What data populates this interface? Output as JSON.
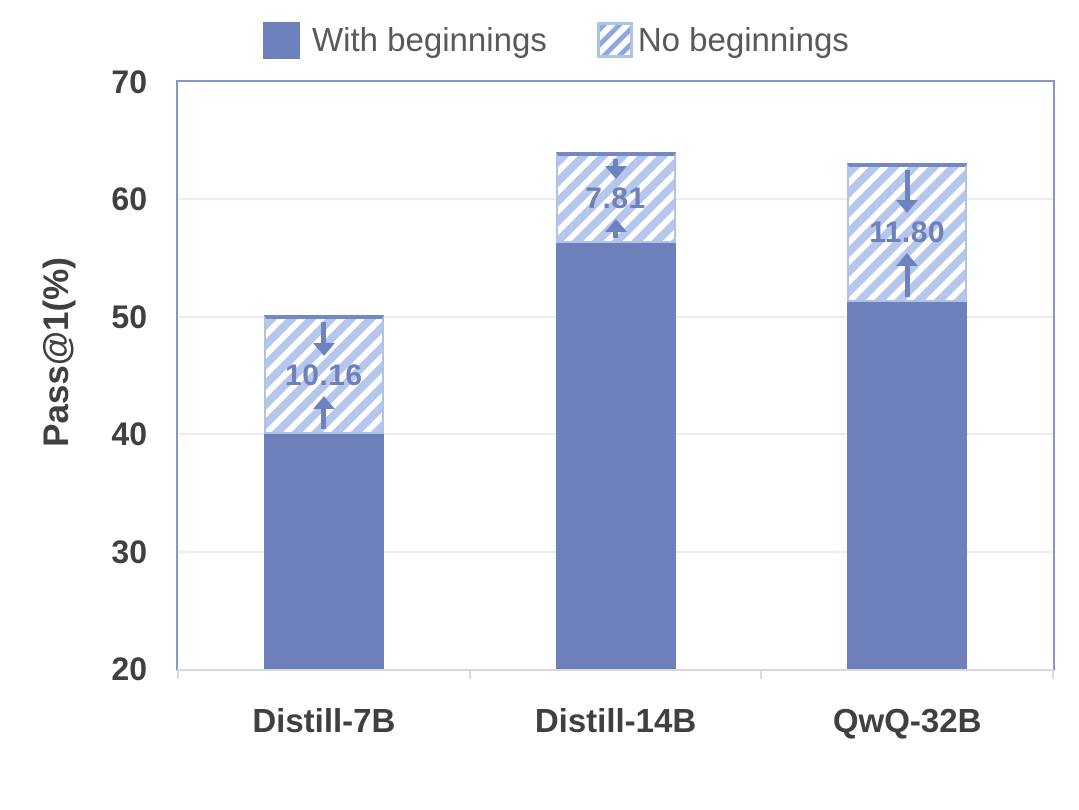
{
  "chart_data": {
    "type": "bar",
    "subtype": "stacked",
    "title": "",
    "xlabel": "",
    "ylabel": "Pass@1(%)",
    "ylim": [
      20,
      70
    ],
    "yticks": [
      20,
      30,
      40,
      50,
      60,
      70
    ],
    "grid": "horizontal",
    "legend_position": "top",
    "categories": [
      "Distill-7B",
      "Distill-14B",
      "QwQ-32B"
    ],
    "series": [
      {
        "name": "With beginnings",
        "style": "solid",
        "values": [
          39.98,
          56.25,
          51.3
        ]
      },
      {
        "name": "No beginnings",
        "style": "hatched",
        "values": [
          10.16,
          7.81,
          11.8
        ]
      }
    ],
    "stack_totals": [
      50.14,
      64.06,
      63.1
    ],
    "difference_labels": [
      "10.16",
      "7.81",
      "11.80"
    ],
    "annotations": "Each hatched segment contains a downward and an upward arrow pointing at the difference value label"
  },
  "colors": {
    "bar_solid": "#6D80BB",
    "hatch_fill": "#B5C7EB",
    "hatch_stripe": "#FFFFFF",
    "hatch_border": "#AFC2E8",
    "hatch_cap": "#7488C6",
    "legend_stripe": "#8FA8DC",
    "arrow": "#6F82C0",
    "diff_label_text": "#7080BB",
    "grid_line": "#E9ECF6",
    "plot_border": "#8496CB",
    "axis_line": "#D9D9D9",
    "axis_text": "#404040",
    "legend_text": "#595959"
  }
}
